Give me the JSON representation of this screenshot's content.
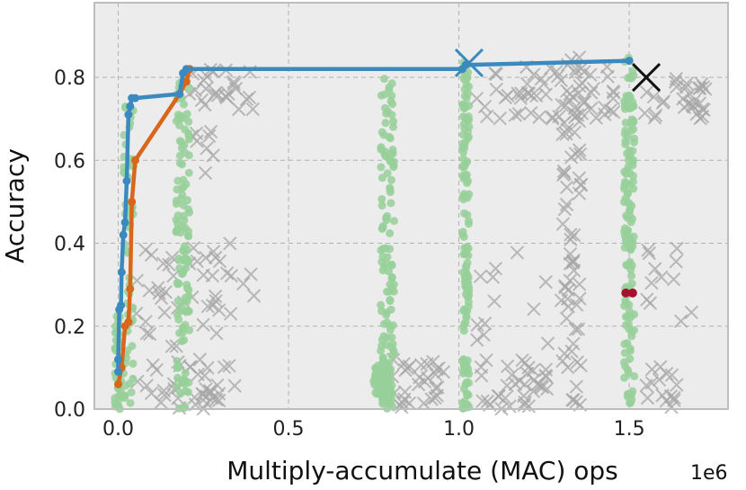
{
  "chart_data": {
    "type": "scatter",
    "xlabel": "Multiply-accumulate (MAC) ops",
    "ylabel": "Accuracy",
    "x_offset_label": "1e6",
    "xlim": [
      -0.07,
      1.79
    ],
    "ylim": [
      0.0,
      0.98
    ],
    "x_ticks": [
      0.0,
      0.5,
      1.0,
      1.5
    ],
    "x_tick_labels": [
      "0.0",
      "0.5",
      "1.0",
      "1.5"
    ],
    "y_ticks": [
      0.0,
      0.2,
      0.4,
      0.6,
      0.8
    ],
    "y_tick_labels": [
      "0.0",
      "0.2",
      "0.4",
      "0.6",
      "0.8"
    ],
    "grid": true,
    "colors": {
      "background": "#ececec",
      "grid": "#b0b0b0",
      "frame": "#bdbdbd",
      "cross": "#a6a6a6",
      "green_points": "#98d09a",
      "red_points": "#a5122f",
      "blue_series": "#3a8ac0",
      "orange_series": "#d8661b",
      "big_x": "#111111"
    },
    "series": [
      {
        "kind": "line",
        "color": "#3a8ac0",
        "points": [
          [
            0.0,
            0.09
          ],
          [
            0.0,
            0.12
          ],
          [
            0.003,
            0.24
          ],
          [
            0.008,
            0.25
          ],
          [
            0.01,
            0.33
          ],
          [
            0.015,
            0.42
          ],
          [
            0.02,
            0.45
          ],
          [
            0.025,
            0.55
          ],
          [
            0.03,
            0.71
          ],
          [
            0.035,
            0.73
          ],
          [
            0.04,
            0.75
          ],
          [
            0.05,
            0.75
          ],
          [
            0.18,
            0.76
          ],
          [
            0.19,
            0.81
          ],
          [
            0.2,
            0.82
          ],
          [
            1.01,
            0.82
          ],
          [
            1.02,
            0.83
          ],
          [
            1.5,
            0.84
          ]
        ]
      },
      {
        "kind": "line",
        "color": "#d8661b",
        "points": [
          [
            0.0,
            0.06
          ],
          [
            0.01,
            0.1
          ],
          [
            0.02,
            0.2
          ],
          [
            0.03,
            0.21
          ],
          [
            0.035,
            0.29
          ],
          [
            0.04,
            0.5
          ],
          [
            0.05,
            0.6
          ],
          [
            0.18,
            0.76
          ],
          [
            0.2,
            0.79
          ],
          [
            0.21,
            0.82
          ]
        ]
      }
    ],
    "special_markers": [
      {
        "x": 1.03,
        "y": 0.835,
        "marker": "x",
        "color": "#3a8ac0"
      },
      {
        "x": 1.55,
        "y": 0.8,
        "marker": "x",
        "color": "#111111"
      }
    ],
    "red_points": [
      [
        1.49,
        0.28
      ],
      [
        1.51,
        0.28
      ]
    ],
    "cross_clusters": [
      {
        "x": [
          0.05,
          0.35
        ],
        "y": [
          0.0,
          0.12
        ],
        "count": 40
      },
      {
        "x": [
          0.05,
          0.4
        ],
        "y": [
          0.15,
          0.4
        ],
        "count": 45
      },
      {
        "x": [
          0.2,
          0.4
        ],
        "y": [
          0.72,
          0.82
        ],
        "count": 25
      },
      {
        "x": [
          0.2,
          0.3
        ],
        "y": [
          0.56,
          0.67
        ],
        "count": 8
      },
      {
        "x": [
          0.8,
          0.97
        ],
        "y": [
          0.0,
          0.12
        ],
        "count": 30
      },
      {
        "x": [
          1.06,
          1.26
        ],
        "y": [
          0.0,
          0.12
        ],
        "count": 35
      },
      {
        "x": [
          1.05,
          1.3
        ],
        "y": [
          0.13,
          0.4
        ],
        "count": 12
      },
      {
        "x": [
          1.05,
          1.47
        ],
        "y": [
          0.7,
          0.83
        ],
        "count": 55
      },
      {
        "x": [
          1.3,
          1.36
        ],
        "y": [
          0.0,
          0.85
        ],
        "count": 70
      },
      {
        "x": [
          1.53,
          1.73
        ],
        "y": [
          0.7,
          0.8
        ],
        "count": 30
      },
      {
        "x": [
          1.55,
          1.7
        ],
        "y": [
          0.0,
          0.12
        ],
        "count": 15
      },
      {
        "x": [
          1.55,
          1.7
        ],
        "y": [
          0.2,
          0.4
        ],
        "count": 12
      }
    ],
    "green_columns": [
      {
        "x": 0.0,
        "spread": 0.01,
        "y": [
          0.0,
          0.25
        ],
        "count": 40
      },
      {
        "x": 0.03,
        "spread": 0.015,
        "y": [
          0.0,
          0.75
        ],
        "count": 60
      },
      {
        "x": 0.19,
        "spread": 0.02,
        "y": [
          0.0,
          0.82
        ],
        "count": 120
      },
      {
        "x": 0.79,
        "spread": 0.02,
        "y": [
          0.0,
          0.8
        ],
        "count": 120
      },
      {
        "x": 1.02,
        "spread": 0.01,
        "y": [
          0.0,
          0.84
        ],
        "count": 140
      },
      {
        "x": 1.5,
        "spread": 0.015,
        "y": [
          0.0,
          0.85
        ],
        "count": 140
      }
    ],
    "green_bands": [
      {
        "x": [
          0.75,
          0.8
        ],
        "y": [
          0.03,
          0.11
        ],
        "count": 60
      }
    ]
  }
}
